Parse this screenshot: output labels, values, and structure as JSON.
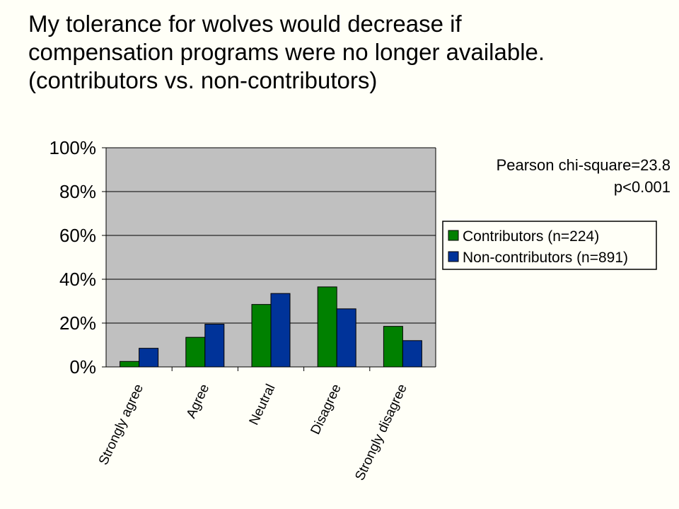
{
  "slide": {
    "title_lines": [
      "My tolerance for wolves would decrease if",
      "compensation programs were no longer available.",
      "(contributors vs. non-contributors)"
    ]
  },
  "stats": {
    "chi_square": "Pearson chi-square=23.8",
    "p_value": "p<0.001"
  },
  "colors": {
    "plot_area": "#c0c0c0",
    "contributors": "#008000",
    "non_contributors": "#003399"
  },
  "chart_data": {
    "type": "bar",
    "title": "",
    "xlabel": "",
    "ylabel": "",
    "categories": [
      "Strongly agree",
      "Agree",
      "Neutral",
      "Disagree",
      "Strongly disagree"
    ],
    "series": [
      {
        "name": "Contributors (n=224)",
        "values": [
          2.5,
          13.5,
          28.5,
          36.5,
          18.5
        ]
      },
      {
        "name": "Non-contributors (n=891)",
        "values": [
          8.5,
          19.5,
          33.5,
          26.5,
          12
        ]
      }
    ],
    "ylim": [
      0,
      100
    ],
    "yticks": [
      "0%",
      "20%",
      "40%",
      "60%",
      "80%",
      "100%"
    ],
    "grid": true,
    "legend": "right"
  }
}
